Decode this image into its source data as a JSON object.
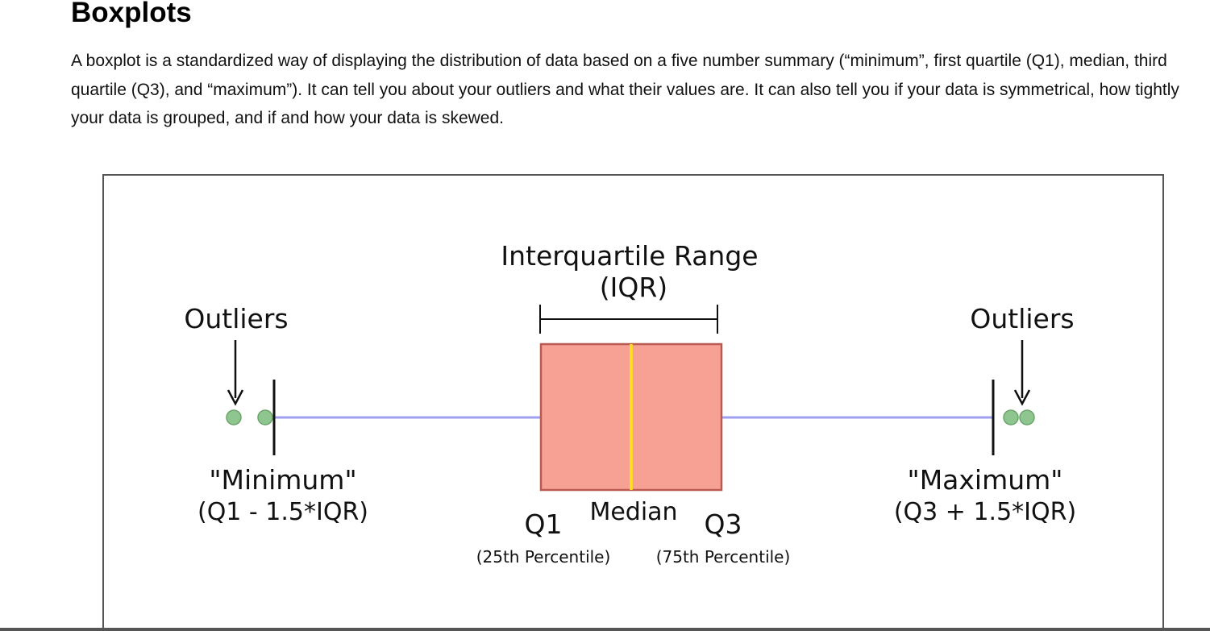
{
  "page": {
    "title": "Boxplots",
    "intro": "A boxplot is a standardized way of displaying the distribution of data based on a five number summary (“minimum”, first quartile (Q1), median, third quartile (Q3), and “maximum”). It can tell you about your outliers and what their values are. It can also tell you if your data is symmetrical, how tightly your data is grouped, and if and how your data is skewed."
  },
  "diagram": {
    "iqr_label_line1": "Interquartile Range",
    "iqr_label_line2": "(IQR)",
    "outliers_left_label": "Outliers",
    "outliers_right_label": "Outliers",
    "minimum_label": "\"Minimum\"",
    "minimum_formula": "(Q1 - 1.5*IQR)",
    "maximum_label": "\"Maximum\"",
    "maximum_formula": "(Q3 + 1.5*IQR)",
    "q1_label": "Q1",
    "q1_sublabel": "(25th Percentile)",
    "median_label": "Median",
    "q3_label": "Q3",
    "q3_sublabel": "(75th Percentile)",
    "colors": {
      "box_fill": "#f7a195",
      "box_stroke": "#b85a52",
      "median": "#ffe21a",
      "whisker": "#9f9ff2",
      "outlier_fill": "#8fc68f",
      "outlier_stroke": "#6aa46a",
      "frame": "#555555"
    }
  }
}
